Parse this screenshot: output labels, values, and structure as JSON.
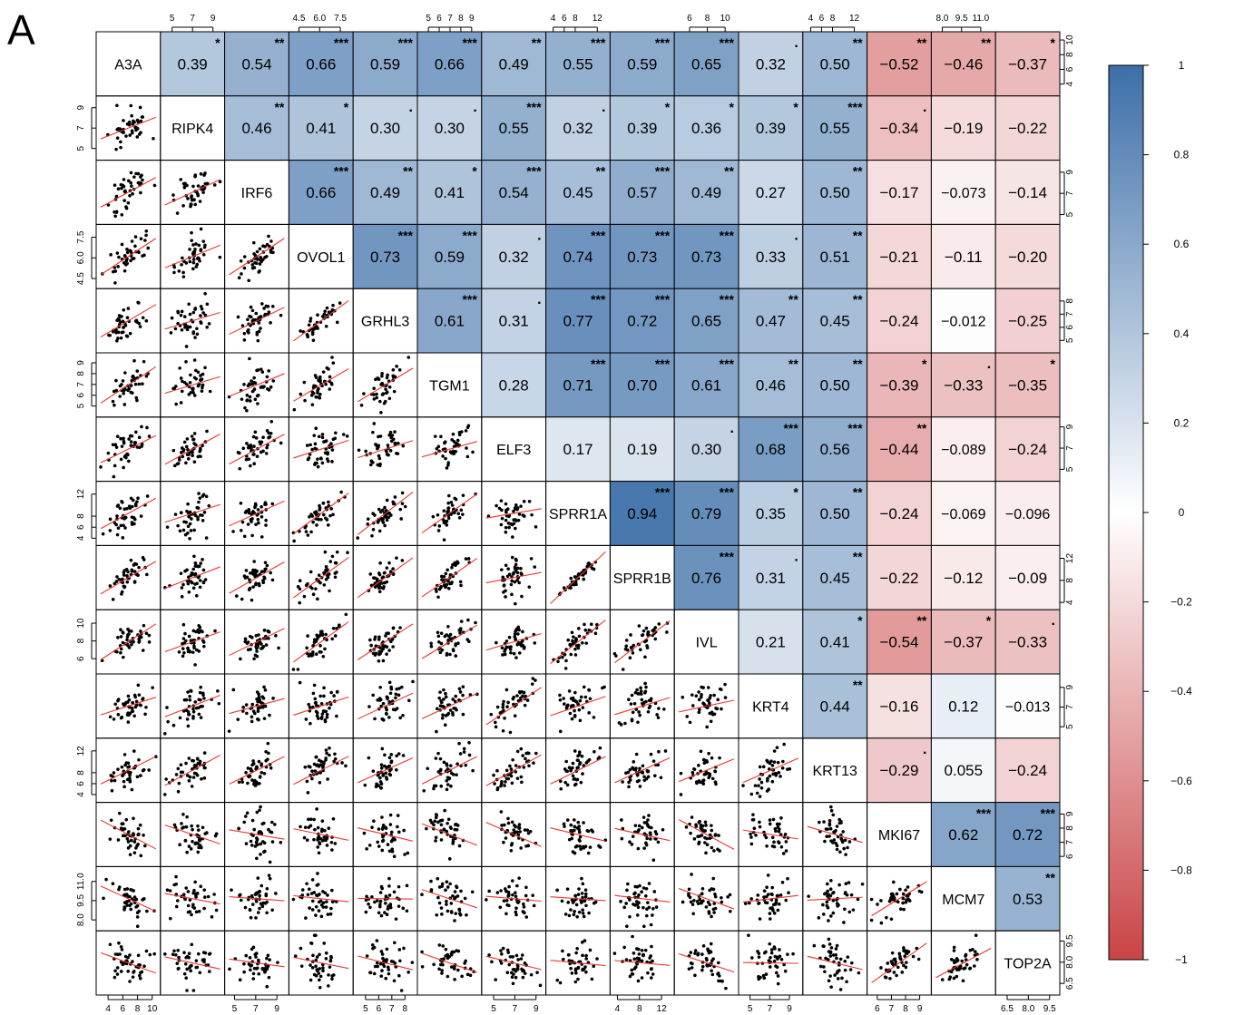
{
  "panel_label": "A",
  "chart_data": {
    "type": "correlation-matrix",
    "variables": [
      "A3A",
      "RIPK4",
      "IRF6",
      "OVOL1",
      "GRHL3",
      "TGM1",
      "ELF3",
      "SPRR1A",
      "SPRR1B",
      "IVL",
      "KRT4",
      "KRT13",
      "MKI67",
      "MCM7",
      "TOP2A"
    ],
    "correlations": [
      [
        "",
        "0.39",
        "0.54",
        "0.66",
        "0.59",
        "0.66",
        "0.49",
        "0.55",
        "0.59",
        "0.65",
        "0.32",
        "0.50",
        "−0.52",
        "−0.46",
        "−0.37"
      ],
      [
        "",
        "",
        "0.46",
        "0.41",
        "0.30",
        "0.30",
        "0.55",
        "0.32",
        "0.39",
        "0.36",
        "0.39",
        "0.55",
        "−0.34",
        "−0.19",
        "−0.22"
      ],
      [
        "",
        "",
        "",
        "0.66",
        "0.49",
        "0.41",
        "0.54",
        "0.45",
        "0.57",
        "0.49",
        "0.27",
        "0.50",
        "−0.17",
        "−0.073",
        "−0.14"
      ],
      [
        "",
        "",
        "",
        "",
        "0.73",
        "0.59",
        "0.32",
        "0.74",
        "0.73",
        "0.73",
        "0.33",
        "0.51",
        "−0.21",
        "−0.11",
        "−0.20"
      ],
      [
        "",
        "",
        "",
        "",
        "",
        "0.61",
        "0.31",
        "0.77",
        "0.72",
        "0.65",
        "0.47",
        "0.45",
        "−0.24",
        "−0.012",
        "−0.25"
      ],
      [
        "",
        "",
        "",
        "",
        "",
        "",
        "0.28",
        "0.71",
        "0.70",
        "0.61",
        "0.46",
        "0.50",
        "−0.39",
        "−0.33",
        "−0.35"
      ],
      [
        "",
        "",
        "",
        "",
        "",
        "",
        "",
        "0.17",
        "0.19",
        "0.30",
        "0.68",
        "0.56",
        "−0.44",
        "−0.089",
        "−0.24"
      ],
      [
        "",
        "",
        "",
        "",
        "",
        "",
        "",
        "",
        "0.94",
        "0.79",
        "0.35",
        "0.50",
        "−0.24",
        "−0.069",
        "−0.096"
      ],
      [
        "",
        "",
        "",
        "",
        "",
        "",
        "",
        "",
        "",
        "0.76",
        "0.31",
        "0.45",
        "−0.22",
        "−0.12",
        "−0.09"
      ],
      [
        "",
        "",
        "",
        "",
        "",
        "",
        "",
        "",
        "",
        "",
        "0.21",
        "0.41",
        "−0.54",
        "−0.37",
        "−0.33"
      ],
      [
        "",
        "",
        "",
        "",
        "",
        "",
        "",
        "",
        "",
        "",
        "",
        "0.44",
        "−0.16",
        "0.12",
        "−0.013"
      ],
      [
        "",
        "",
        "",
        "",
        "",
        "",
        "",
        "",
        "",
        "",
        "",
        "",
        "−0.29",
        "0.055",
        "−0.24"
      ],
      [
        "",
        "",
        "",
        "",
        "",
        "",
        "",
        "",
        "",
        "",
        "",
        "",
        "",
        "0.62",
        "0.72"
      ],
      [
        "",
        "",
        "",
        "",
        "",
        "",
        "",
        "",
        "",
        "",
        "",
        "",
        "",
        "",
        "0.53"
      ],
      [
        "",
        "",
        "",
        "",
        "",
        "",
        "",
        "",
        "",
        "",
        "",
        "",
        "",
        "",
        ""
      ]
    ],
    "significance": [
      [
        "",
        "*",
        "**",
        "***",
        "***",
        "***",
        "**",
        "***",
        "***",
        "***",
        ".",
        "**",
        "**",
        "**",
        "*"
      ],
      [
        "",
        "",
        "**",
        "*",
        ".",
        ".",
        "***",
        ".",
        "*",
        "*",
        "*",
        "***",
        ".",
        "",
        ""
      ],
      [
        "",
        "",
        "",
        "***",
        "**",
        "*",
        "***",
        "**",
        "***",
        "**",
        "",
        "**",
        "",
        "",
        ""
      ],
      [
        "",
        "",
        "",
        "",
        "***",
        "***",
        ".",
        "***",
        "***",
        "***",
        ".",
        "**",
        "",
        "",
        ""
      ],
      [
        "",
        "",
        "",
        "",
        "",
        "***",
        ".",
        "***",
        "***",
        "***",
        "**",
        "**",
        "",
        "",
        ""
      ],
      [
        "",
        "",
        "",
        "",
        "",
        "",
        "",
        "***",
        "***",
        "***",
        "**",
        "**",
        "*",
        ".",
        "*"
      ],
      [
        "",
        "",
        "",
        "",
        "",
        "",
        "",
        "",
        "",
        ".",
        "***",
        "***",
        "**",
        "",
        ""
      ],
      [
        "",
        "",
        "",
        "",
        "",
        "",
        "",
        "",
        "***",
        "***",
        "*",
        "**",
        "",
        "",
        ""
      ],
      [
        "",
        "",
        "",
        "",
        "",
        "",
        "",
        "",
        "",
        "***",
        ".",
        "**",
        "",
        "",
        ""
      ],
      [
        "",
        "",
        "",
        "",
        "",
        "",
        "",
        "",
        "",
        "",
        "",
        "*",
        "**",
        "*",
        "."
      ],
      [
        "",
        "",
        "",
        "",
        "",
        "",
        "",
        "",
        "",
        "",
        "",
        "**",
        "",
        "",
        ""
      ],
      [
        "",
        "",
        "",
        "",
        "",
        "",
        "",
        "",
        "",
        "",
        "",
        "",
        ".",
        "",
        ""
      ],
      [
        "",
        "",
        "",
        "",
        "",
        "",
        "",
        "",
        "",
        "",
        "",
        "",
        "",
        "***",
        "***"
      ],
      [
        "",
        "",
        "",
        "",
        "",
        "",
        "",
        "",
        "",
        "",
        "",
        "",
        "",
        "",
        "**"
      ],
      [
        "",
        "",
        "",
        "",
        "",
        "",
        "",
        "",
        "",
        "",
        "",
        "",
        "",
        "",
        ""
      ]
    ],
    "axis_ticks": {
      "top": [
        [
          "5",
          "7",
          "9"
        ],
        [
          "4.5",
          "6.0",
          "7.5"
        ],
        [
          "5",
          "6",
          "7",
          "8",
          "9"
        ],
        [
          "4",
          "6",
          "8",
          "12"
        ],
        [
          "6",
          "8",
          "10"
        ],
        [
          "4",
          "6",
          "8",
          "12"
        ],
        [
          "8.0",
          "9.5",
          "11.0"
        ]
      ],
      "right": [
        [
          "4",
          "6",
          "8",
          "10"
        ],
        [
          "5",
          "7",
          "9"
        ],
        [
          "5",
          "6",
          "7",
          "8"
        ],
        [
          "5",
          "7",
          "9"
        ],
        [
          "4",
          "8",
          "12"
        ],
        [
          "5",
          "7",
          "9"
        ],
        [
          "6",
          "7",
          "8",
          "9"
        ],
        [
          "6.5",
          "8.0",
          "9.5"
        ]
      ],
      "left": [
        [
          "5",
          "7",
          "9"
        ],
        [
          "4.5",
          "6.0",
          "7.5"
        ],
        [
          "5",
          "6",
          "7",
          "8",
          "9"
        ],
        [
          "4",
          "6",
          "8",
          "12"
        ],
        [
          "6",
          "8",
          "10"
        ],
        [
          "4",
          "6",
          "8",
          "12"
        ],
        [
          "8.0",
          "9.5",
          "11.0"
        ]
      ],
      "bottom": [
        [
          "4",
          "6",
          "8",
          "10"
        ],
        [
          "5",
          "7",
          "9"
        ],
        [
          "5",
          "6",
          "7",
          "8"
        ],
        [
          "5",
          "7",
          "9"
        ],
        [
          "4",
          "8",
          "12"
        ],
        [
          "5",
          "7",
          "9"
        ],
        [
          "6",
          "7",
          "8",
          "9"
        ],
        [
          "6.5",
          "8.0",
          "9.5"
        ]
      ]
    },
    "ranges": [
      [
        3,
        10.5
      ],
      [
        4.3,
        9.7
      ],
      [
        4.5,
        9.7
      ],
      [
        4.1,
        8.1
      ],
      [
        4.4,
        8.6
      ],
      [
        4.4,
        9.5
      ],
      [
        4.3,
        9.5
      ],
      [
        3.5,
        13.5
      ],
      [
        3.5,
        13.5
      ],
      [
        4.8,
        11
      ],
      [
        4.3,
        9.9
      ],
      [
        3.4,
        13.5
      ],
      [
        5.6,
        9.5
      ],
      [
        7.5,
        11.8
      ],
      [
        6,
        9.9
      ]
    ],
    "stars_pattern": [
      1,
      2,
      3,
      3,
      2,
      3,
      1,
      2,
      3
    ],
    "colorbar": {
      "ticks": [
        "1",
        "0.8",
        "0.6",
        "0.4",
        "0.2",
        "0",
        "−0.2",
        "−0.4",
        "−0.6",
        "−0.8",
        "−1"
      ],
      "colors": {
        "positive": "#3C6FA8",
        "neutral": "#FFFFFF",
        "negative": "#C94446"
      }
    },
    "regression_color": "#E8372F",
    "point_color": "#000000"
  }
}
